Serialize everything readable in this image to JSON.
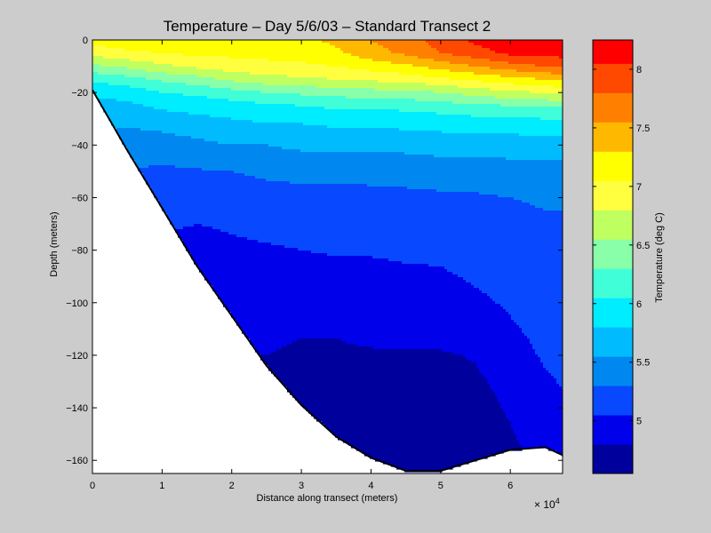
{
  "chart_data": {
    "type": "contour",
    "title": "Temperature – Day 5/6/03 – Standard Transect 2",
    "xlabel": "Distance along transect (meters)",
    "ylabel": "Depth (meters)",
    "x_exponent_label": "× 10",
    "x_exponent_power": "4",
    "xlim": [
      0,
      67500
    ],
    "ylim": [
      -165,
      0
    ],
    "x_ticks": [
      {
        "value": 0,
        "label": "0"
      },
      {
        "value": 10000,
        "label": "1"
      },
      {
        "value": 20000,
        "label": "2"
      },
      {
        "value": 30000,
        "label": "3"
      },
      {
        "value": 40000,
        "label": "4"
      },
      {
        "value": 50000,
        "label": "5"
      },
      {
        "value": 60000,
        "label": "6"
      }
    ],
    "y_ticks": [
      {
        "value": 0,
        "label": "0"
      },
      {
        "value": -20,
        "label": "−20"
      },
      {
        "value": -40,
        "label": "−40"
      },
      {
        "value": -60,
        "label": "−60"
      },
      {
        "value": -80,
        "label": "−80"
      },
      {
        "value": -100,
        "label": "−100"
      },
      {
        "value": -120,
        "label": "−120"
      },
      {
        "value": -140,
        "label": "−140"
      },
      {
        "value": -160,
        "label": "−160"
      }
    ],
    "colorbar": {
      "label": "Temperature (deg C)",
      "range": [
        4.55,
        8.25
      ],
      "ticks": [
        {
          "value": 5,
          "label": "5"
        },
        {
          "value": 5.5,
          "label": "5.5"
        },
        {
          "value": 6,
          "label": "6"
        },
        {
          "value": 6.5,
          "label": "6.5"
        },
        {
          "value": 7,
          "label": "7"
        },
        {
          "value": 7.5,
          "label": "7.5"
        },
        {
          "value": 8,
          "label": "8"
        }
      ],
      "levels": [
        {
          "lo": 4.55,
          "hi": 4.8,
          "color": "#00009c"
        },
        {
          "lo": 4.8,
          "hi": 5.05,
          "color": "#0000ea"
        },
        {
          "lo": 5.05,
          "hi": 5.3,
          "color": "#0848ff"
        },
        {
          "lo": 5.3,
          "hi": 5.55,
          "color": "#0088f0"
        },
        {
          "lo": 5.55,
          "hi": 5.8,
          "color": "#00bcff"
        },
        {
          "lo": 5.8,
          "hi": 6.05,
          "color": "#00ecff"
        },
        {
          "lo": 6.05,
          "hi": 6.3,
          "color": "#40ffd8"
        },
        {
          "lo": 6.3,
          "hi": 6.55,
          "color": "#88ffa8"
        },
        {
          "lo": 6.55,
          "hi": 6.8,
          "color": "#c0ff60"
        },
        {
          "lo": 6.8,
          "hi": 7.05,
          "color": "#ffff40"
        },
        {
          "lo": 7.05,
          "hi": 7.3,
          "color": "#ffff00"
        },
        {
          "lo": 7.3,
          "hi": 7.55,
          "color": "#ffb800"
        },
        {
          "lo": 7.55,
          "hi": 7.8,
          "color": "#ff8000"
        },
        {
          "lo": 7.8,
          "hi": 8.05,
          "color": "#ff4800"
        },
        {
          "lo": 8.05,
          "hi": 8.25,
          "color": "#ff0000"
        }
      ]
    },
    "seafloor": [
      {
        "x": 0,
        "depth": -19
      },
      {
        "x": 5000,
        "depth": -42
      },
      {
        "x": 10000,
        "depth": -64
      },
      {
        "x": 15000,
        "depth": -86
      },
      {
        "x": 20000,
        "depth": -105
      },
      {
        "x": 25000,
        "depth": -124
      },
      {
        "x": 30000,
        "depth": -139
      },
      {
        "x": 35000,
        "depth": -151
      },
      {
        "x": 40000,
        "depth": -159
      },
      {
        "x": 45000,
        "depth": -164
      },
      {
        "x": 50000,
        "depth": -164
      },
      {
        "x": 55000,
        "depth": -160
      },
      {
        "x": 60000,
        "depth": -156
      },
      {
        "x": 65000,
        "depth": -155
      },
      {
        "x": 67500,
        "depth": -158
      }
    ],
    "depth_levels": [
      0,
      -5,
      -10,
      -15,
      -20,
      -25,
      -30,
      -35,
      -40,
      -50,
      -60,
      -70,
      -80,
      -90,
      -100,
      -110,
      -120,
      -130,
      -140,
      -150,
      -160,
      -165
    ],
    "temperature_profiles": [
      {
        "x": 0,
        "values": [
          7.15,
          6.9,
          6.5,
          6.1,
          5.85,
          5.7,
          5.6,
          5.5,
          5.45,
          5.4,
          5.35,
          5.3,
          5.25,
          5.2,
          5.15,
          5.1,
          5.05,
          5.0,
          4.95,
          4.9,
          4.85,
          4.8
        ]
      },
      {
        "x": 5000,
        "values": [
          7.2,
          7.0,
          6.6,
          6.2,
          5.9,
          5.75,
          5.65,
          5.5,
          5.4,
          5.3,
          5.25,
          5.15,
          5.1,
          5.05,
          5.0,
          4.95,
          4.9,
          4.85,
          4.8,
          4.75,
          4.7,
          4.7
        ]
      },
      {
        "x": 10000,
        "values": [
          7.2,
          7.05,
          6.75,
          6.35,
          6.05,
          5.85,
          5.7,
          5.55,
          5.45,
          5.25,
          5.12,
          5.08,
          5.0,
          4.98,
          4.95,
          4.9,
          4.85,
          4.8,
          4.75,
          4.7,
          4.65,
          4.65
        ]
      },
      {
        "x": 15000,
        "values": [
          7.2,
          7.1,
          6.85,
          6.45,
          6.1,
          5.9,
          5.75,
          5.6,
          5.5,
          5.28,
          5.15,
          5.05,
          4.98,
          4.92,
          4.88,
          4.85,
          4.82,
          4.78,
          4.72,
          4.68,
          4.65,
          4.6
        ]
      },
      {
        "x": 20000,
        "values": [
          7.2,
          7.1,
          6.95,
          6.6,
          6.2,
          5.95,
          5.8,
          5.65,
          5.55,
          5.3,
          5.16,
          5.07,
          5.02,
          4.96,
          4.9,
          4.85,
          4.8,
          4.75,
          4.7,
          4.66,
          4.62,
          4.6
        ]
      },
      {
        "x": 25000,
        "values": [
          7.2,
          7.1,
          7.0,
          6.7,
          6.3,
          6.0,
          5.85,
          5.7,
          5.55,
          5.35,
          5.2,
          5.1,
          5.03,
          4.98,
          4.92,
          4.86,
          4.8,
          4.75,
          4.7,
          4.65,
          4.62,
          4.6
        ]
      },
      {
        "x": 30000,
        "values": [
          7.25,
          7.15,
          7.0,
          6.75,
          6.35,
          6.05,
          5.85,
          5.72,
          5.6,
          5.37,
          5.22,
          5.12,
          5.05,
          5.0,
          4.96,
          4.82,
          4.76,
          4.72,
          4.68,
          4.64,
          4.61,
          4.6
        ]
      },
      {
        "x": 35000,
        "values": [
          7.35,
          7.25,
          7.05,
          6.8,
          6.4,
          6.1,
          5.9,
          5.75,
          5.6,
          5.38,
          5.22,
          5.13,
          5.06,
          5.02,
          4.97,
          4.82,
          4.76,
          4.72,
          4.68,
          4.64,
          4.61,
          4.6
        ]
      },
      {
        "x": 40000,
        "values": [
          7.55,
          7.45,
          7.15,
          6.85,
          6.45,
          6.1,
          5.9,
          5.75,
          5.6,
          5.38,
          5.23,
          5.13,
          5.06,
          5.02,
          4.97,
          4.9,
          4.76,
          4.72,
          4.68,
          4.64,
          4.61,
          4.6
        ]
      },
      {
        "x": 45000,
        "values": [
          7.7,
          7.6,
          7.25,
          6.9,
          6.45,
          6.15,
          5.9,
          5.78,
          5.62,
          5.4,
          5.24,
          5.14,
          5.07,
          5.03,
          4.97,
          4.9,
          4.77,
          4.73,
          4.68,
          4.64,
          4.61,
          4.6
        ]
      },
      {
        "x": 50000,
        "values": [
          7.9,
          7.8,
          7.4,
          7.0,
          6.55,
          6.2,
          5.95,
          5.8,
          5.65,
          5.42,
          5.26,
          5.15,
          5.08,
          5.03,
          4.97,
          4.92,
          4.77,
          4.73,
          4.68,
          4.64,
          4.61,
          4.6
        ]
      },
      {
        "x": 55000,
        "values": [
          8.1,
          7.95,
          7.55,
          7.1,
          6.65,
          6.25,
          6.0,
          5.82,
          5.65,
          5.43,
          5.27,
          5.18,
          5.12,
          5.07,
          5.02,
          4.95,
          4.82,
          4.76,
          4.7,
          4.66,
          4.62,
          4.6
        ]
      },
      {
        "x": 60000,
        "values": [
          8.2,
          8.1,
          7.7,
          7.2,
          6.75,
          6.3,
          6.02,
          5.83,
          5.66,
          5.45,
          5.3,
          5.22,
          5.16,
          5.11,
          5.07,
          5.03,
          4.98,
          4.88,
          4.83,
          4.78,
          4.7,
          4.65
        ]
      },
      {
        "x": 65000,
        "values": [
          8.2,
          8.15,
          7.8,
          7.3,
          6.8,
          6.35,
          6.05,
          5.85,
          5.67,
          5.45,
          5.33,
          5.27,
          5.22,
          5.18,
          5.14,
          5.1,
          5.07,
          5.03,
          5.0,
          4.95,
          4.9,
          4.85
        ]
      },
      {
        "x": 67500,
        "values": [
          8.2,
          8.15,
          7.85,
          7.35,
          6.85,
          6.35,
          6.05,
          5.85,
          5.67,
          5.45,
          5.33,
          5.27,
          5.23,
          5.19,
          5.15,
          5.12,
          5.09,
          5.06,
          5.03,
          5.0,
          4.95,
          4.9
        ]
      }
    ]
  }
}
